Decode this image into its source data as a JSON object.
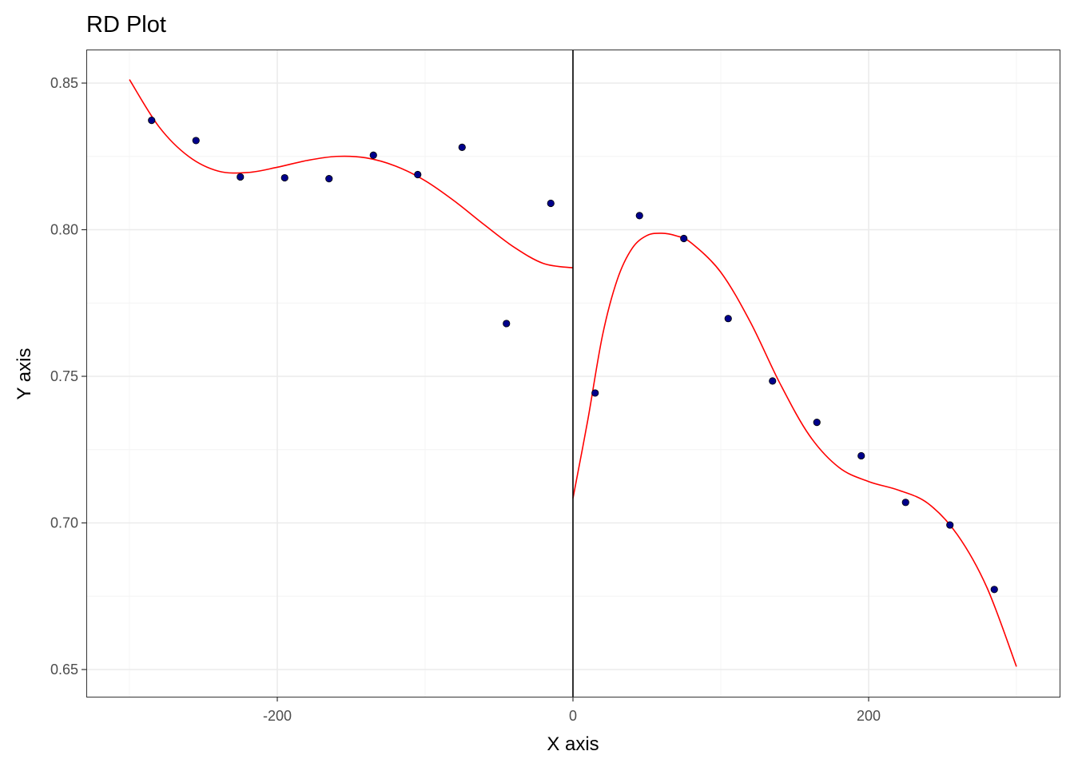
{
  "chart_data": {
    "type": "scatter",
    "title": "RD Plot",
    "xlabel": "X axis",
    "ylabel": "Y axis",
    "xlim": [
      -300,
      300
    ],
    "ylim": [
      0.65,
      0.85
    ],
    "x_ticks": [
      -200,
      0,
      200
    ],
    "x_tick_labels": [
      "-200",
      "0",
      "200"
    ],
    "y_ticks": [
      0.65,
      0.7,
      0.75,
      0.8,
      0.85
    ],
    "y_tick_labels": [
      "0.65",
      "0.70",
      "0.75",
      "0.80",
      "0.85"
    ],
    "grid": true,
    "cutoff": 0,
    "colors": {
      "points": "#00008B",
      "fit": "#FF0000",
      "cutoff_line": "#000000",
      "grid_major": "#EBEBEB",
      "grid_minor": "#F4F4F4",
      "panel_border": "#333333"
    },
    "points": [
      {
        "x": -285,
        "y": 0.8373
      },
      {
        "x": -255,
        "y": 0.8304
      },
      {
        "x": -225,
        "y": 0.818
      },
      {
        "x": -195,
        "y": 0.8177
      },
      {
        "x": -165,
        "y": 0.8174
      },
      {
        "x": -135,
        "y": 0.8254
      },
      {
        "x": -105,
        "y": 0.8188
      },
      {
        "x": -75,
        "y": 0.8281
      },
      {
        "x": -45,
        "y": 0.768
      },
      {
        "x": -15,
        "y": 0.809
      },
      {
        "x": 15,
        "y": 0.7443
      },
      {
        "x": 45,
        "y": 0.8048
      },
      {
        "x": 75,
        "y": 0.797
      },
      {
        "x": 105,
        "y": 0.7697
      },
      {
        "x": 135,
        "y": 0.7484
      },
      {
        "x": 165,
        "y": 0.7343
      },
      {
        "x": 195,
        "y": 0.7229
      },
      {
        "x": 225,
        "y": 0.707
      },
      {
        "x": 255,
        "y": 0.6993
      },
      {
        "x": 285,
        "y": 0.6773
      }
    ],
    "fit_left": [
      {
        "x": -300,
        "y": 0.8512
      },
      {
        "x": -280,
        "y": 0.8351
      },
      {
        "x": -260,
        "y": 0.825
      },
      {
        "x": -240,
        "y": 0.82
      },
      {
        "x": -220,
        "y": 0.8195
      },
      {
        "x": -200,
        "y": 0.8213
      },
      {
        "x": -180,
        "y": 0.8236
      },
      {
        "x": -160,
        "y": 0.825
      },
      {
        "x": -140,
        "y": 0.8245
      },
      {
        "x": -120,
        "y": 0.8217
      },
      {
        "x": -100,
        "y": 0.8167
      },
      {
        "x": -80,
        "y": 0.8097
      },
      {
        "x": -60,
        "y": 0.8017
      },
      {
        "x": -40,
        "y": 0.7941
      },
      {
        "x": -20,
        "y": 0.7885
      },
      {
        "x": 0,
        "y": 0.787
      }
    ],
    "fit_right": [
      {
        "x": 0,
        "y": 0.7084
      },
      {
        "x": 10,
        "y": 0.735
      },
      {
        "x": 20,
        "y": 0.764
      },
      {
        "x": 30,
        "y": 0.783
      },
      {
        "x": 40,
        "y": 0.7936
      },
      {
        "x": 50,
        "y": 0.798
      },
      {
        "x": 60,
        "y": 0.7988
      },
      {
        "x": 70,
        "y": 0.7979
      },
      {
        "x": 80,
        "y": 0.7955
      },
      {
        "x": 100,
        "y": 0.7855
      },
      {
        "x": 120,
        "y": 0.7685
      },
      {
        "x": 140,
        "y": 0.7476
      },
      {
        "x": 160,
        "y": 0.7298
      },
      {
        "x": 180,
        "y": 0.7189
      },
      {
        "x": 200,
        "y": 0.7141
      },
      {
        "x": 220,
        "y": 0.7112
      },
      {
        "x": 240,
        "y": 0.7067
      },
      {
        "x": 260,
        "y": 0.696
      },
      {
        "x": 280,
        "y": 0.678
      },
      {
        "x": 300,
        "y": 0.651
      }
    ]
  }
}
